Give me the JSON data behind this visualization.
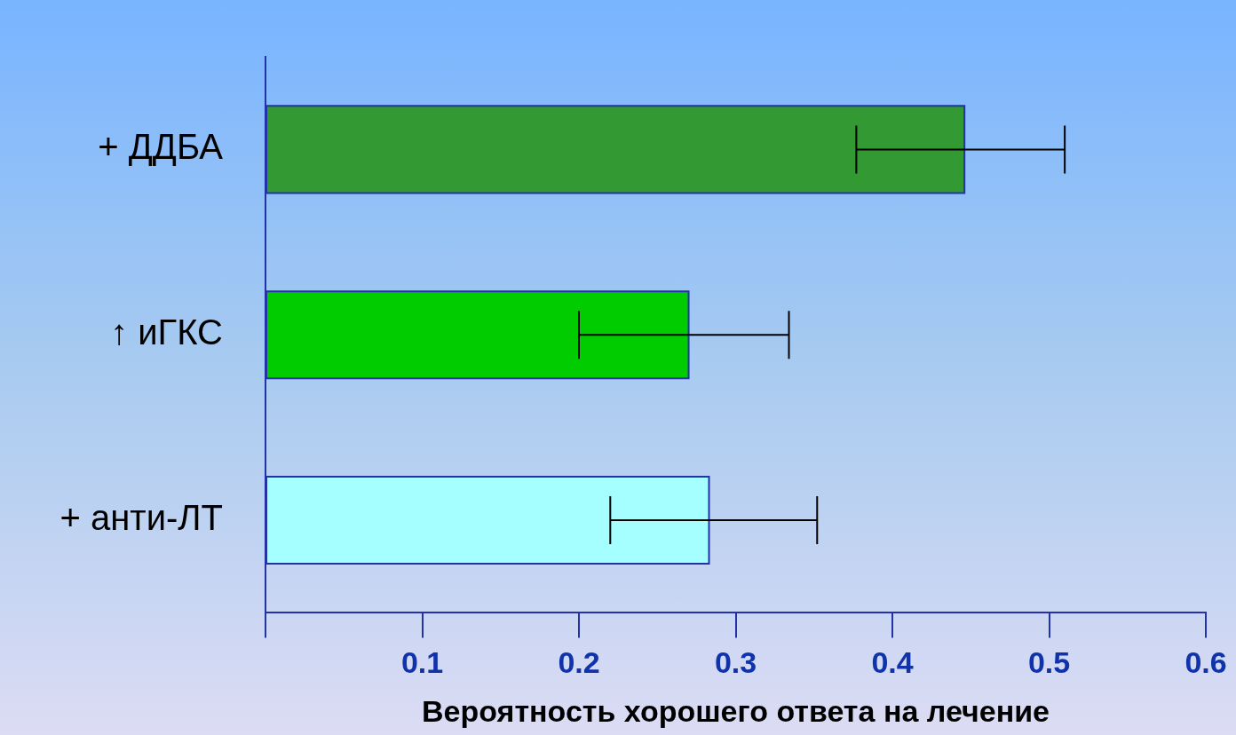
{
  "chart_data": {
    "type": "bar",
    "orientation": "horizontal",
    "xlabel": "Вероятность хорошего ответа на лечение",
    "categories": [
      "+ ДДБА",
      "↑ иГКС",
      "+ анти-ЛТ"
    ],
    "values": [
      0.446,
      0.27,
      0.283
    ],
    "colors": [
      "#339933",
      "#00cc00",
      "#a6ffff"
    ],
    "errors": [
      [
        0.377,
        0.51
      ],
      [
        0.2,
        0.334
      ],
      [
        0.22,
        0.352
      ]
    ],
    "xlim": [
      0,
      0.6
    ],
    "xticks": [
      {
        "value": 0,
        "label": null
      },
      0.1,
      0.2,
      0.3,
      0.4,
      0.5,
      0.6
    ],
    "grid": false,
    "legend": false
  }
}
